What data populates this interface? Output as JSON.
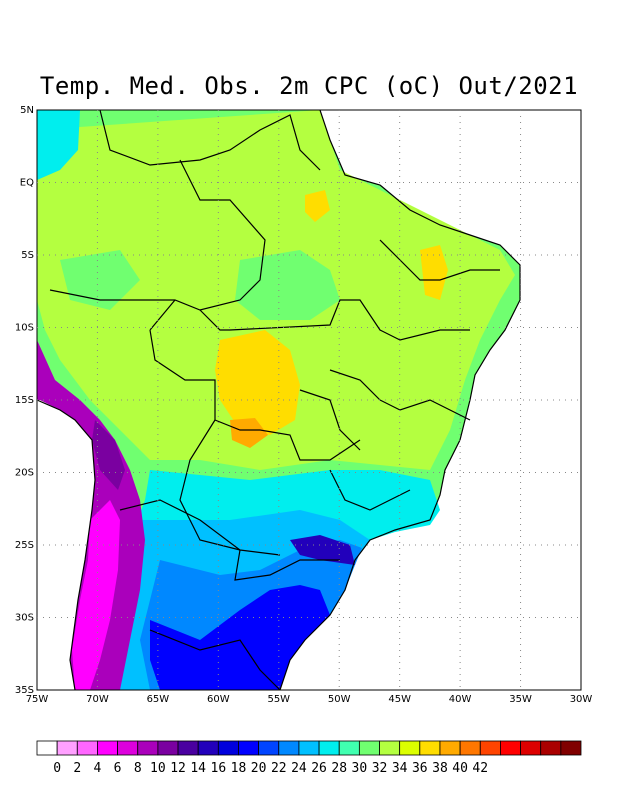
{
  "title": "Temp. Med. Obs. 2m CPC (oC) Out/2021",
  "map": {
    "lat_labels": [
      "5N",
      "EQ",
      "5S",
      "10S",
      "15S",
      "20S",
      "25S",
      "30S",
      "35S"
    ],
    "lon_labels": [
      "75W",
      "70W",
      "65W",
      "60W",
      "55W",
      "50W",
      "45W",
      "40W",
      "35W",
      "30W"
    ],
    "lon_range": [
      -75,
      -30
    ],
    "lat_range": [
      -35,
      5
    ],
    "grid": "dotted",
    "region": "Brazil and surroundings"
  },
  "colorbar": {
    "labels": [
      "0",
      "2",
      "4",
      "6",
      "8",
      "10",
      "12",
      "14",
      "16",
      "18",
      "20",
      "22",
      "24",
      "26",
      "28",
      "30",
      "32",
      "34",
      "36",
      "38",
      "40",
      "42"
    ],
    "colors": [
      "#ffffff",
      "#ffa0ff",
      "#ff66ff",
      "#ff00ff",
      "#dd00dd",
      "#aa00bb",
      "#7a00a0",
      "#4a00a0",
      "#2200bb",
      "#0000dd",
      "#0000ff",
      "#0044ff",
      "#0088ff",
      "#00c0ff",
      "#00eeee",
      "#40ffb0",
      "#70ff70",
      "#b4ff40",
      "#dcff00",
      "#ffdd00",
      "#ffaa00",
      "#ff7700",
      "#ff4400",
      "#ff0000",
      "#dd0000",
      "#aa0000",
      "#800000"
    ]
  }
}
